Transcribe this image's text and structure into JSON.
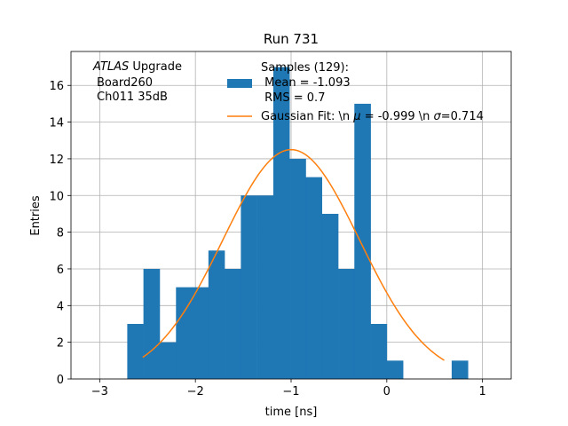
{
  "chart_data": {
    "type": "bar",
    "title": "Run 731",
    "xlabel": "time [ns]",
    "ylabel": "Entries",
    "xlim": [
      -3.3,
      1.3
    ],
    "ylim": [
      0,
      17.85
    ],
    "grid": true,
    "xticks": [
      -3,
      -2,
      -1,
      0,
      1
    ],
    "xtick_labels": [
      "−3",
      "−2",
      "−1",
      "0",
      "1"
    ],
    "yticks": [
      0,
      2,
      4,
      6,
      8,
      10,
      12,
      14,
      16
    ],
    "ytick_labels": [
      "0",
      "2",
      "4",
      "6",
      "8",
      "10",
      "12",
      "14",
      "16"
    ],
    "histogram": {
      "color": "#1f77b4",
      "bin_edges": [
        -2.712,
        -2.543,
        -2.373,
        -2.203,
        -2.034,
        -1.864,
        -1.695,
        -1.525,
        -1.356,
        -1.186,
        -1.017,
        -0.847,
        -0.678,
        -0.508,
        -0.339,
        -0.169,
        0.0,
        0.17,
        0.339,
        0.509,
        0.678,
        0.848
      ],
      "counts": [
        3,
        6,
        2,
        5,
        5,
        7,
        6,
        10,
        10,
        17,
        12,
        11,
        9,
        6,
        15,
        3,
        1,
        0,
        0,
        0,
        1
      ],
      "legend_lines": [
        "Samples (129):",
        " Mean = -1.093",
        " RMS = 0.7"
      ]
    },
    "fit": {
      "color": "#ff7f0e",
      "label": "Gaussian Fit: \\n $\\mu$ = -0.999 \\n $\\sigma$=0.714",
      "label_parts": [
        "Gaussian Fit: \\n ",
        "μ",
        " = -0.999 \\n ",
        "σ",
        "=0.714"
      ],
      "mu": -0.999,
      "sigma": 0.714,
      "amplitude": 12.5,
      "x_range": [
        -2.55,
        0.6
      ]
    },
    "annotation": {
      "lines": [
        "ATLAS Upgrade",
        "Board260",
        "Ch011 35dB"
      ],
      "emph_word": "ATLAS",
      "rest_first_line": " Upgrade"
    },
    "legend_location": "upper-center"
  }
}
